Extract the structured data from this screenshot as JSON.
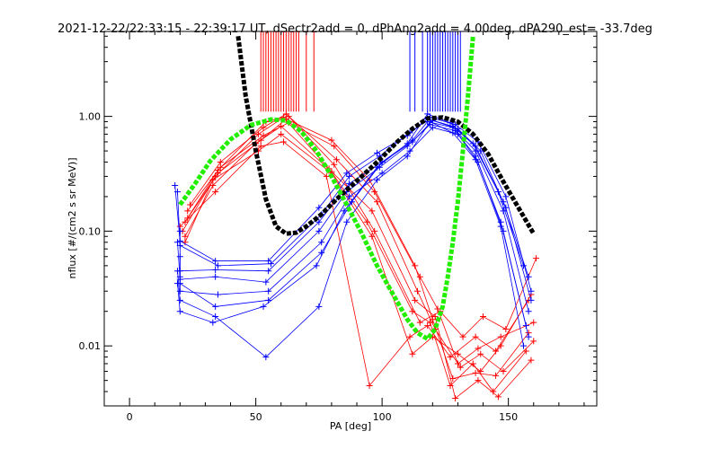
{
  "chart_data": {
    "type": "line",
    "title": "2021-12-22/22:33:15 - 22:39:17 UT, dSectr2add = 0, dPhAng2add = 4.00deg, dPA290_est= -33.7deg",
    "xlabel": "PA [deg]",
    "ylabel": "nflux [#/(cm2 s sr MeV)]",
    "xlim": [
      -10,
      185
    ],
    "ylim": [
      0.003,
      5.5
    ],
    "yscale": "log",
    "grid": false,
    "x_ticks": [
      0,
      50,
      100,
      150
    ],
    "x_tick_labels": [
      "0",
      "50",
      "100",
      "150"
    ],
    "y_ticks": [
      0.01,
      0.1,
      1.0
    ],
    "y_tick_labels": [
      "0.01",
      "0.10",
      "1.00"
    ],
    "colors": {
      "red": "#ff0000",
      "blue": "#0000ff",
      "black": "#000000",
      "green": "#22ee00"
    },
    "series": [
      {
        "color": "red",
        "style": "cross-line",
        "x": [
          22,
          35,
          52,
          62,
          80,
          95,
          113,
          120,
          128,
          137,
          145,
          158
        ],
        "y": [
          0.12,
          0.32,
          0.62,
          0.95,
          0.62,
          0.28,
          0.05,
          0.017,
          0.0052,
          0.0058,
          0.0055,
          0.013
        ]
      },
      {
        "color": "red",
        "style": "cross-line",
        "x": [
          23,
          36,
          53,
          63,
          81,
          97,
          115,
          122,
          130,
          138,
          147,
          160
        ],
        "y": [
          0.15,
          0.36,
          0.68,
          0.88,
          0.55,
          0.22,
          0.04,
          0.021,
          0.007,
          0.0095,
          0.012,
          0.016
        ]
      },
      {
        "color": "red",
        "style": "cross-line",
        "x": [
          21,
          34,
          51,
          61,
          79,
          94,
          112,
          119,
          127,
          136,
          144,
          157
        ],
        "y": [
          0.1,
          0.3,
          0.7,
          0.98,
          0.35,
          0.12,
          0.02,
          0.016,
          0.0045,
          0.007,
          0.004,
          0.009
        ]
      },
      {
        "color": "red",
        "style": "cross-line",
        "x": [
          22,
          33,
          50,
          60,
          80,
          96,
          113,
          121,
          129,
          138,
          146,
          159
        ],
        "y": [
          0.09,
          0.25,
          0.58,
          0.82,
          0.33,
          0.15,
          0.025,
          0.018,
          0.0035,
          0.005,
          0.0036,
          0.0075
        ]
      },
      {
        "color": "red",
        "style": "cross-line",
        "x": [
          24,
          36,
          53,
          62,
          82,
          98,
          114,
          121,
          131,
          139,
          148,
          160
        ],
        "y": [
          0.17,
          0.4,
          0.8,
          1.05,
          0.42,
          0.18,
          0.03,
          0.014,
          0.0065,
          0.0085,
          0.006,
          0.011
        ]
      },
      {
        "color": "red",
        "style": "cross-line",
        "x": [
          20,
          34,
          52,
          61,
          78,
          95,
          111,
          118,
          127,
          137,
          145,
          158
        ],
        "y": [
          0.11,
          0.22,
          0.55,
          0.6,
          0.3,
          0.0045,
          0.012,
          0.015,
          0.008,
          0.012,
          0.009,
          0.025
        ]
      },
      {
        "color": "red",
        "style": "cross-line",
        "x": [
          23,
          35,
          54,
          63,
          81,
          97,
          115,
          123,
          132,
          140,
          149,
          161
        ],
        "y": [
          0.13,
          0.34,
          0.9,
          1.0,
          0.38,
          0.1,
          0.016,
          0.02,
          0.012,
          0.018,
          0.014,
          0.058
        ]
      },
      {
        "color": "red",
        "style": "cross-line",
        "x": [
          22,
          33,
          51,
          60,
          80,
          96,
          112,
          120,
          130,
          139,
          147,
          159
        ],
        "y": [
          0.08,
          0.28,
          0.5,
          0.7,
          0.32,
          0.09,
          0.0085,
          0.012,
          0.0085,
          0.006,
          0.01,
          0.028
        ]
      },
      {
        "color": "blue",
        "style": "cross-line",
        "x": [
          18,
          20,
          34,
          55,
          75,
          86,
          98,
          110,
          118,
          128,
          137,
          148,
          158
        ],
        "y": [
          0.25,
          0.082,
          0.055,
          0.055,
          0.16,
          0.32,
          0.48,
          0.68,
          0.95,
          0.82,
          0.55,
          0.18,
          0.04
        ]
      },
      {
        "color": "blue",
        "style": "cross-line",
        "x": [
          19,
          20,
          35,
          56,
          76,
          87,
          99,
          111,
          119,
          129,
          138,
          149,
          159
        ],
        "y": [
          0.22,
          0.075,
          0.05,
          0.052,
          0.14,
          0.3,
          0.45,
          0.72,
          0.98,
          0.85,
          0.6,
          0.2,
          0.03
        ]
      },
      {
        "color": "blue",
        "style": "cross-line",
        "x": [
          20,
          20,
          34,
          55,
          75,
          87,
          100,
          112,
          118,
          128,
          137,
          148,
          158
        ],
        "y": [
          0.1,
          0.045,
          0.046,
          0.045,
          0.12,
          0.26,
          0.4,
          0.62,
          0.9,
          0.8,
          0.5,
          0.15,
          0.02
        ]
      },
      {
        "color": "blue",
        "style": "cross-line",
        "x": [
          19,
          20,
          34,
          54,
          75,
          86,
          99,
          110,
          119,
          129,
          137,
          147,
          157
        ],
        "y": [
          0.08,
          0.038,
          0.04,
          0.036,
          0.1,
          0.22,
          0.36,
          0.55,
          0.85,
          0.75,
          0.45,
          0.12,
          0.015
        ]
      },
      {
        "color": "blue",
        "style": "cross-line",
        "x": [
          20,
          20,
          35,
          55,
          76,
          87,
          100,
          111,
          120,
          130,
          138,
          148,
          158
        ],
        "y": [
          0.06,
          0.03,
          0.028,
          0.03,
          0.08,
          0.2,
          0.32,
          0.5,
          0.8,
          0.7,
          0.4,
          0.1,
          0.012
        ]
      },
      {
        "color": "blue",
        "style": "cross-line",
        "x": [
          19,
          20,
          34,
          54,
          75,
          86,
          98,
          110,
          119,
          128,
          137,
          147,
          156
        ],
        "y": [
          0.045,
          0.025,
          0.018,
          0.008,
          0.022,
          0.12,
          0.28,
          0.45,
          0.9,
          0.72,
          0.42,
          0.11,
          0.01
        ]
      },
      {
        "color": "blue",
        "style": "cross-line",
        "x": [
          20,
          20,
          34,
          55,
          76,
          88,
          100,
          112,
          120,
          130,
          139,
          149,
          159
        ],
        "y": [
          0.04,
          0.035,
          0.022,
          0.025,
          0.065,
          0.18,
          0.4,
          0.6,
          0.92,
          0.78,
          0.5,
          0.16,
          0.025
        ]
      },
      {
        "color": "blue",
        "style": "cross-line",
        "x": [
          19,
          20,
          33,
          53,
          74,
          85,
          98,
          110,
          118,
          127,
          136,
          146,
          156
        ],
        "y": [
          0.035,
          0.02,
          0.016,
          0.022,
          0.05,
          0.15,
          0.36,
          0.58,
          1.05,
          0.88,
          0.58,
          0.22,
          0.05
        ]
      },
      {
        "color": "black",
        "style": "thick-dashed",
        "x": [
          43,
          46,
          50,
          54,
          58,
          62,
          66,
          70,
          76,
          82,
          88,
          94,
          100,
          106,
          112,
          118,
          124,
          130,
          136,
          142,
          148,
          154,
          160
        ],
        "y": [
          5.0,
          1.5,
          0.5,
          0.19,
          0.11,
          0.095,
          0.097,
          0.11,
          0.14,
          0.19,
          0.25,
          0.33,
          0.44,
          0.6,
          0.78,
          0.96,
          0.98,
          0.9,
          0.7,
          0.47,
          0.27,
          0.16,
          0.095
        ]
      },
      {
        "color": "green",
        "style": "thick-dashed",
        "x": [
          20,
          26,
          32,
          40,
          48,
          56,
          62,
          68,
          74,
          80,
          86,
          92,
          98,
          104,
          110,
          114,
          118,
          121,
          124,
          126,
          128,
          130,
          132,
          134,
          136
        ],
        "y": [
          0.17,
          0.26,
          0.41,
          0.63,
          0.84,
          0.94,
          0.92,
          0.74,
          0.5,
          0.3,
          0.17,
          0.095,
          0.05,
          0.029,
          0.017,
          0.013,
          0.0115,
          0.014,
          0.022,
          0.04,
          0.08,
          0.18,
          0.5,
          1.5,
          5.0
        ]
      }
    ],
    "vertical_lines": [
      {
        "color": "red",
        "bottom": 1.1,
        "x": [
          52,
          53,
          54,
          55,
          56,
          57,
          58,
          59,
          60,
          61,
          62,
          63,
          64,
          65,
          66,
          67,
          70,
          73
        ]
      },
      {
        "color": "blue",
        "bottom": 1.1,
        "x": [
          111,
          113,
          116,
          118,
          119,
          120,
          121,
          122,
          123,
          124,
          125,
          126,
          127,
          128,
          129,
          130,
          131
        ]
      }
    ]
  }
}
